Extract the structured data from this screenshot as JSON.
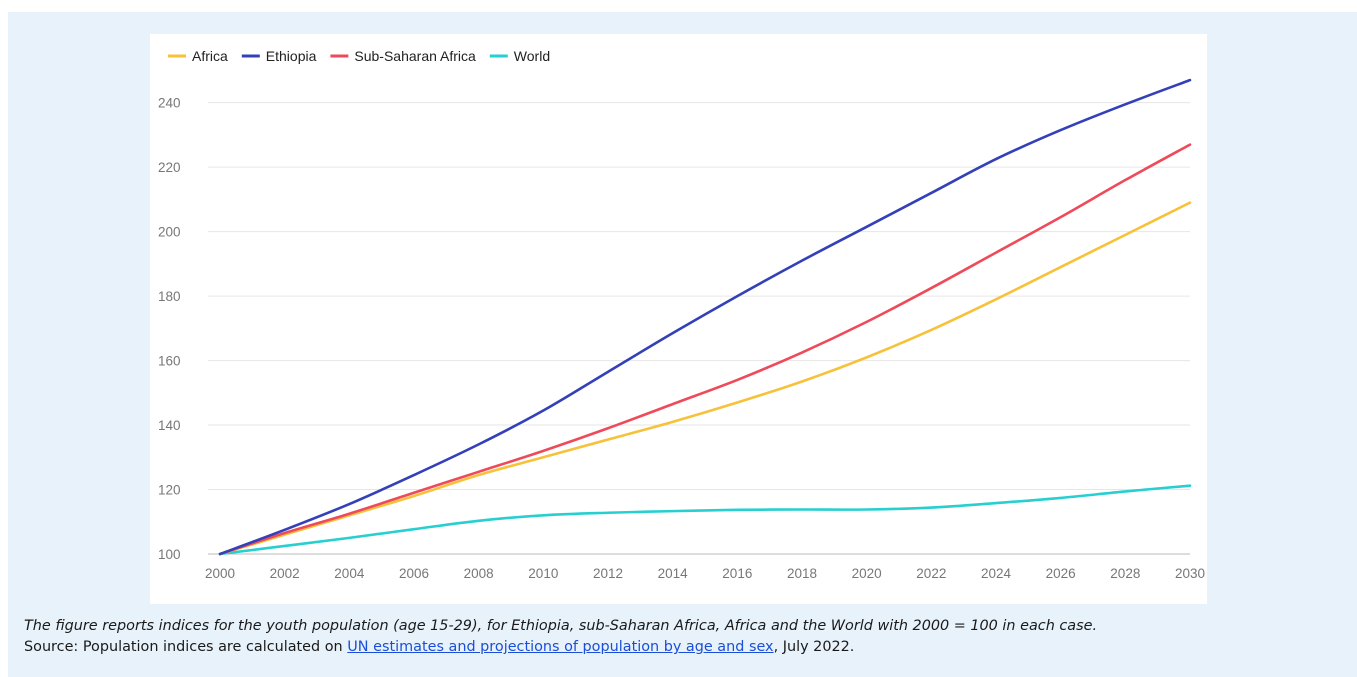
{
  "chart_data": {
    "type": "line",
    "title": "",
    "xlabel": "",
    "ylabel": "",
    "x": [
      2000,
      2002,
      2004,
      2006,
      2008,
      2010,
      2012,
      2014,
      2016,
      2018,
      2020,
      2022,
      2024,
      2026,
      2028,
      2030
    ],
    "x_ticks": [
      "2000",
      "2002",
      "2004",
      "2006",
      "2008",
      "2010",
      "2012",
      "2014",
      "2016",
      "2018",
      "2020",
      "2022",
      "2024",
      "2026",
      "2028",
      "2030"
    ],
    "y_ticks": [
      "100",
      "120",
      "140",
      "160",
      "180",
      "200",
      "220",
      "240"
    ],
    "xlim": [
      2000,
      2030
    ],
    "ylim": [
      100,
      252
    ],
    "grid": true,
    "legend_position": "top-left",
    "series": [
      {
        "name": "Africa",
        "color": "#f7c23a",
        "values": [
          100,
          106,
          112,
          118,
          124.5,
          130,
          135.5,
          141,
          147,
          153.5,
          161,
          169.5,
          179,
          189,
          199,
          209
        ]
      },
      {
        "name": "Ethiopia",
        "color": "#3340b8",
        "values": [
          100,
          107.5,
          115.5,
          124.5,
          134,
          144.5,
          156.5,
          168.5,
          180,
          191,
          201.5,
          212,
          222.5,
          231.5,
          239.5,
          247
        ]
      },
      {
        "name": "Sub-Saharan Africa",
        "color": "#ef4a5a",
        "values": [
          100,
          106.5,
          112.5,
          119,
          125.5,
          132,
          139,
          146.5,
          154,
          162.5,
          172,
          182.5,
          193.5,
          204.5,
          216,
          227
        ]
      },
      {
        "name": "World",
        "color": "#27cfd0",
        "values": [
          100,
          102.5,
          105,
          107.7,
          110.3,
          112,
          112.8,
          113.3,
          113.7,
          113.8,
          113.8,
          114.4,
          115.8,
          117.4,
          119.4,
          121.2
        ]
      }
    ]
  },
  "caption": {
    "note": "The figure reports indices for the youth population (age 15-29), for Ethiopia, sub-Saharan Africa, Africa and the World with 2000 = 100 in each case.",
    "source_prefix": "Source: Population indices are calculated on ",
    "source_link": "UN estimates and projections of population by age and sex",
    "source_suffix": ", July 2022."
  }
}
